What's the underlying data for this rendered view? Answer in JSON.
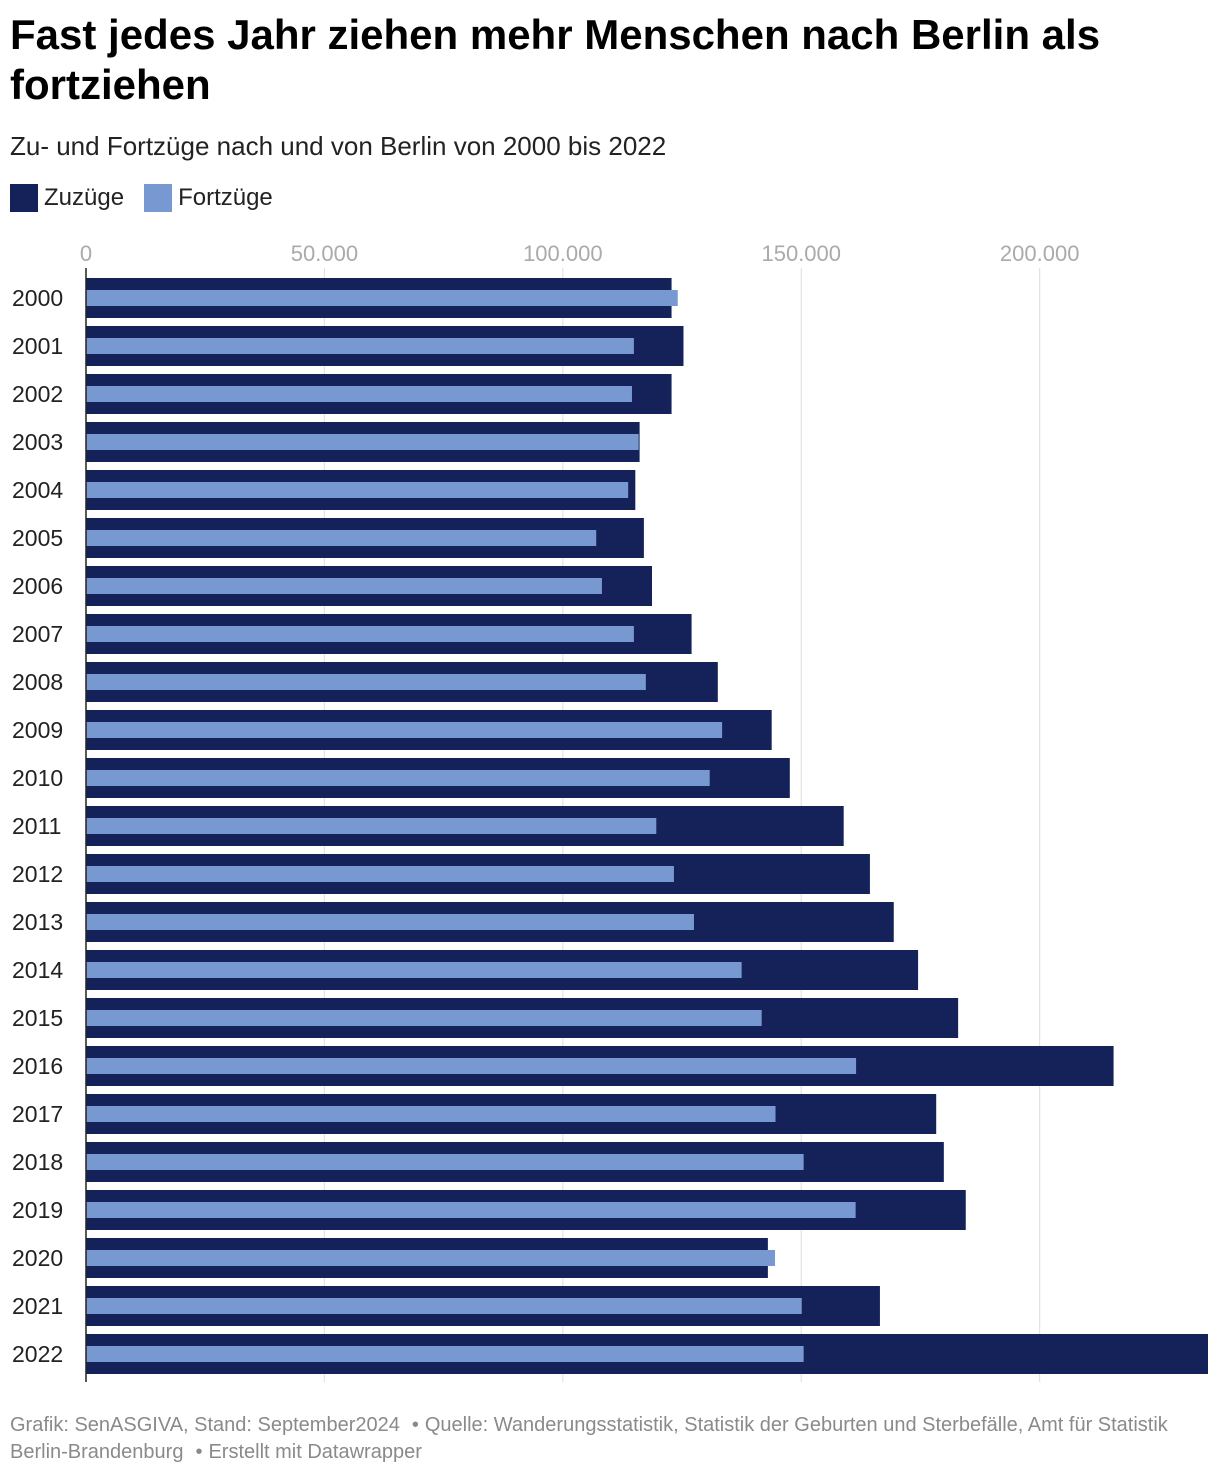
{
  "title": "Fast jedes Jahr ziehen mehr Menschen nach Berlin als fortziehen",
  "subtitle": "Zu- und Fortzüge nach und von Berlin von 2000 bis 2022",
  "legend": {
    "zuzuege_label": "Zuzüge",
    "fortzuege_label": "Fortzüge"
  },
  "colors": {
    "zuzuege": "#15225a",
    "fortzuege": "#7898d2",
    "grid": "#dddddd",
    "tick_label": "#aaaaaa"
  },
  "footer": {
    "grafik": "Grafik: SenASGIVA, Stand: September2024",
    "quelle": "Quelle: Wanderungsstatistik, Statistik der Geburten und Sterbefälle, Amt für Statistik Berlin-Brandenburg",
    "credit": "Erstellt mit Datawrapper"
  },
  "chart_data": {
    "type": "bar",
    "orientation": "horizontal",
    "categories": [
      "2000",
      "2001",
      "2002",
      "2003",
      "2004",
      "2005",
      "2006",
      "2007",
      "2008",
      "2009",
      "2010",
      "2011",
      "2012",
      "2013",
      "2014",
      "2015",
      "2016",
      "2017",
      "2018",
      "2019",
      "2020",
      "2021",
      "2022"
    ],
    "series": [
      {
        "name": "Zuzüge",
        "values": [
          122800,
          125300,
          122800,
          116100,
          115200,
          117000,
          118700,
          127000,
          132500,
          143800,
          147600,
          158900,
          164400,
          169400,
          174500,
          182900,
          215500,
          178300,
          179900,
          184500,
          143000,
          166500,
          235300
        ]
      },
      {
        "name": "Fortzüge",
        "values": [
          124100,
          114900,
          114500,
          115900,
          113700,
          107000,
          108200,
          114900,
          117400,
          133400,
          130800,
          119600,
          123300,
          127500,
          137500,
          141700,
          161500,
          144600,
          150500,
          161400,
          144500,
          150100,
          150500
        ]
      }
    ],
    "x_ticks": [
      "0",
      "50.000",
      "100.000",
      "150.000",
      "200.000"
    ],
    "x_tick_values": [
      0,
      50000,
      100000,
      150000,
      200000
    ],
    "xlim": [
      0,
      235300
    ],
    "grid": true,
    "legend_position": "top-left"
  }
}
